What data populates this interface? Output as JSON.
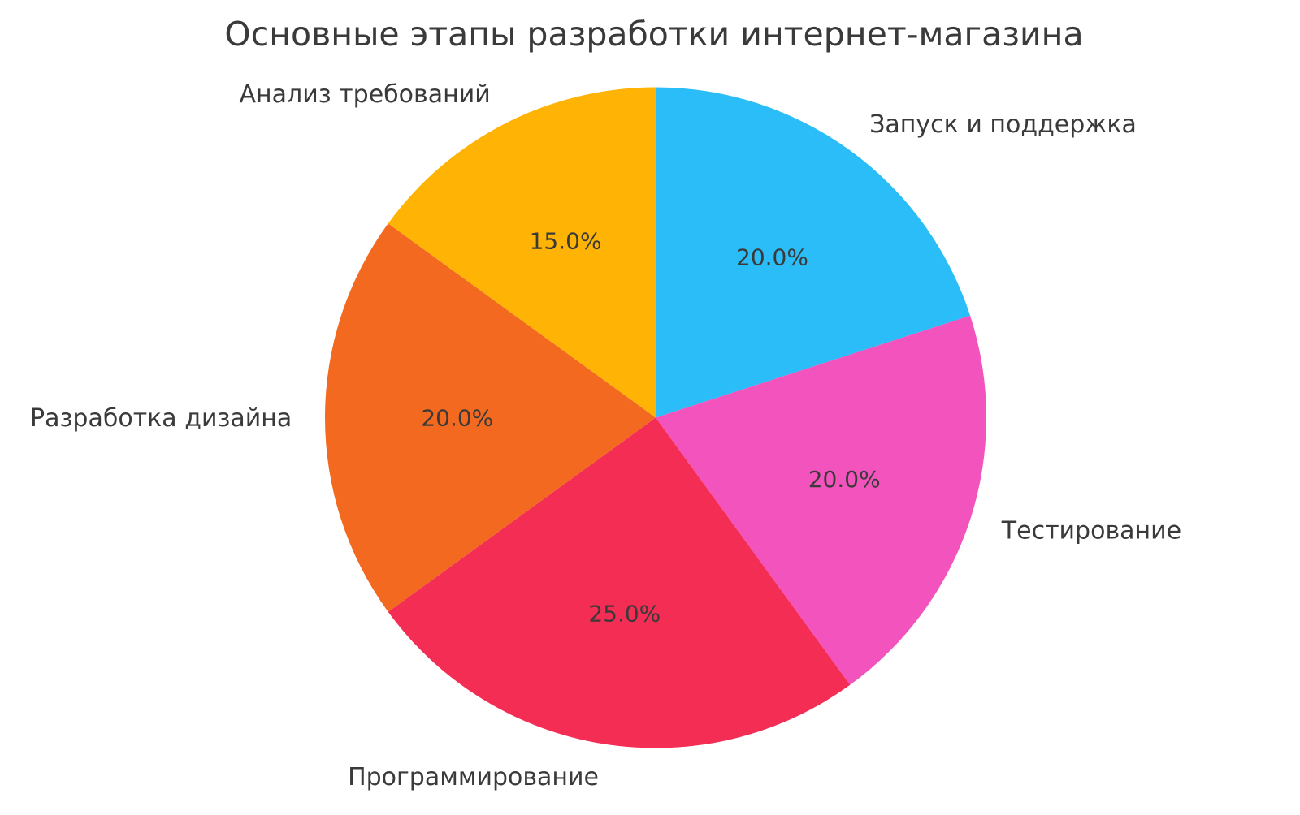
{
  "chart_data": {
    "type": "pie",
    "title": "Основные этапы разработки интернет-магазина",
    "start_angle_deg": 90,
    "direction": "clockwise",
    "label_distance": 1.1,
    "pct_distance": 0.6,
    "text_color": "#3a3a3a",
    "background": "#ffffff",
    "slices": [
      {
        "label": "Запуск и поддержка",
        "value": 20.0,
        "percent_label": "20.0%",
        "color": "#2bbdf7"
      },
      {
        "label": "Тестирование",
        "value": 20.0,
        "percent_label": "20.0%",
        "color": "#f353bc"
      },
      {
        "label": "Программирование",
        "value": 25.0,
        "percent_label": "25.0%",
        "color": "#f42d55"
      },
      {
        "label": "Разработка дизайна",
        "value": 20.0,
        "percent_label": "20.0%",
        "color": "#f2691f"
      },
      {
        "label": "Анализ требований",
        "value": 15.0,
        "percent_label": "15.0%",
        "color": "#ffb405"
      }
    ]
  }
}
